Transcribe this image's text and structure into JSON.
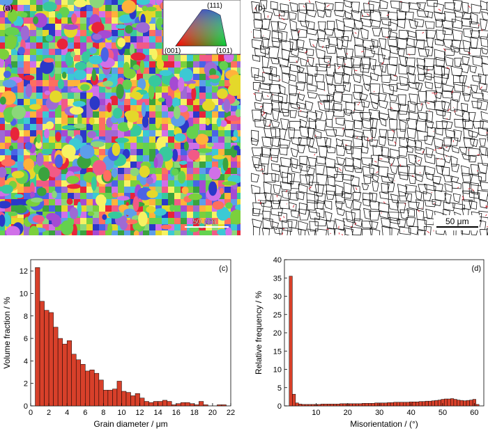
{
  "panel_a": {
    "label": "(a)",
    "scale_bar": "50 μm",
    "ipf_key": {
      "top": "(111)",
      "left": "(001)",
      "right": "(101)"
    },
    "grain_colors": [
      "#e8243a",
      "#f25a86",
      "#ff6f5f",
      "#3aa33e",
      "#64d14f",
      "#8bd77a",
      "#2b38c8",
      "#4a63e6",
      "#5d9ee9",
      "#3cc9d4",
      "#a54ad3",
      "#d070e8",
      "#e4d82a",
      "#ffb23b",
      "#f7f263",
      "#9e6ad4",
      "#37c99d",
      "#7bd03c"
    ]
  },
  "panel_b": {
    "label": "(b)",
    "scale_bar": "50 μm",
    "colors": {
      "high_angle": "#111111",
      "low_angle": "#e0202e"
    }
  },
  "chart_data": [
    {
      "type": "bar",
      "panel_label": "(c)",
      "xlabel": "Grain diameter / μm",
      "ylabel": "Volume fraction / %",
      "xlim": [
        0,
        22
      ],
      "ylim": [
        0,
        13
      ],
      "xticks": [
        0,
        2,
        4,
        6,
        8,
        10,
        12,
        14,
        16,
        18,
        20,
        22
      ],
      "yticks": [
        0,
        2,
        4,
        6,
        8,
        10,
        12
      ],
      "bin_width": 0.5,
      "x": [
        0.75,
        1.25,
        1.75,
        2.25,
        2.75,
        3.25,
        3.75,
        4.25,
        4.75,
        5.25,
        5.75,
        6.25,
        6.75,
        7.25,
        7.75,
        8.25,
        8.75,
        9.25,
        9.75,
        10.25,
        10.75,
        11.25,
        11.75,
        12.25,
        12.75,
        13.25,
        13.75,
        14.25,
        14.75,
        15.25,
        15.75,
        16.25,
        16.75,
        17.25,
        17.75,
        18.25,
        18.75,
        19.25,
        19.75,
        20.25,
        20.75,
        21.25
      ],
      "values": [
        12.3,
        9.3,
        8.5,
        8.3,
        7.0,
        6.0,
        5.5,
        5.8,
        4.6,
        4.1,
        3.7,
        3.1,
        3.2,
        2.9,
        2.3,
        1.4,
        1.4,
        1.5,
        2.2,
        1.3,
        1.2,
        0.9,
        1.1,
        0.7,
        0.4,
        0.3,
        0.4,
        0.4,
        0.5,
        0.4,
        0.1,
        0.2,
        0.3,
        0.3,
        0.2,
        0.1,
        0.4,
        0.1,
        0.0,
        0.0,
        0.1,
        0.1
      ],
      "bar_color": "#d8402a"
    },
    {
      "type": "bar",
      "panel_label": "(d)",
      "xlabel": "Misorientation / (°)",
      "ylabel": "Relative frequency / %",
      "xlim": [
        0,
        63
      ],
      "ylim": [
        0,
        40
      ],
      "xticks": [
        10,
        20,
        30,
        40,
        50,
        60
      ],
      "yticks": [
        0,
        5,
        10,
        15,
        20,
        25,
        30,
        35,
        40
      ],
      "bin_width": 1,
      "x": [
        2,
        3,
        4,
        5,
        6,
        7,
        8,
        9,
        10,
        11,
        12,
        13,
        14,
        15,
        16,
        17,
        18,
        19,
        20,
        21,
        22,
        23,
        24,
        25,
        26,
        27,
        28,
        29,
        30,
        31,
        32,
        33,
        34,
        35,
        36,
        37,
        38,
        39,
        40,
        41,
        42,
        43,
        44,
        45,
        46,
        47,
        48,
        49,
        50,
        51,
        52,
        53,
        54,
        55,
        56,
        57,
        58,
        59,
        60,
        61
      ],
      "values": [
        35.5,
        3.2,
        0.8,
        0.5,
        0.4,
        0.4,
        0.4,
        0.4,
        0.4,
        0.4,
        0.5,
        0.5,
        0.5,
        0.5,
        0.5,
        0.5,
        0.6,
        0.6,
        0.6,
        0.6,
        0.6,
        0.6,
        0.6,
        0.7,
        0.7,
        0.7,
        0.7,
        0.8,
        0.8,
        0.8,
        0.8,
        0.9,
        0.9,
        1.0,
        1.0,
        1.0,
        1.0,
        1.0,
        1.1,
        1.1,
        1.1,
        1.2,
        1.2,
        1.3,
        1.3,
        1.4,
        1.5,
        1.6,
        1.8,
        1.9,
        1.9,
        2.0,
        1.8,
        1.6,
        1.5,
        1.4,
        1.5,
        1.6,
        1.8,
        0.4
      ],
      "bar_color": "#d8402a"
    }
  ]
}
